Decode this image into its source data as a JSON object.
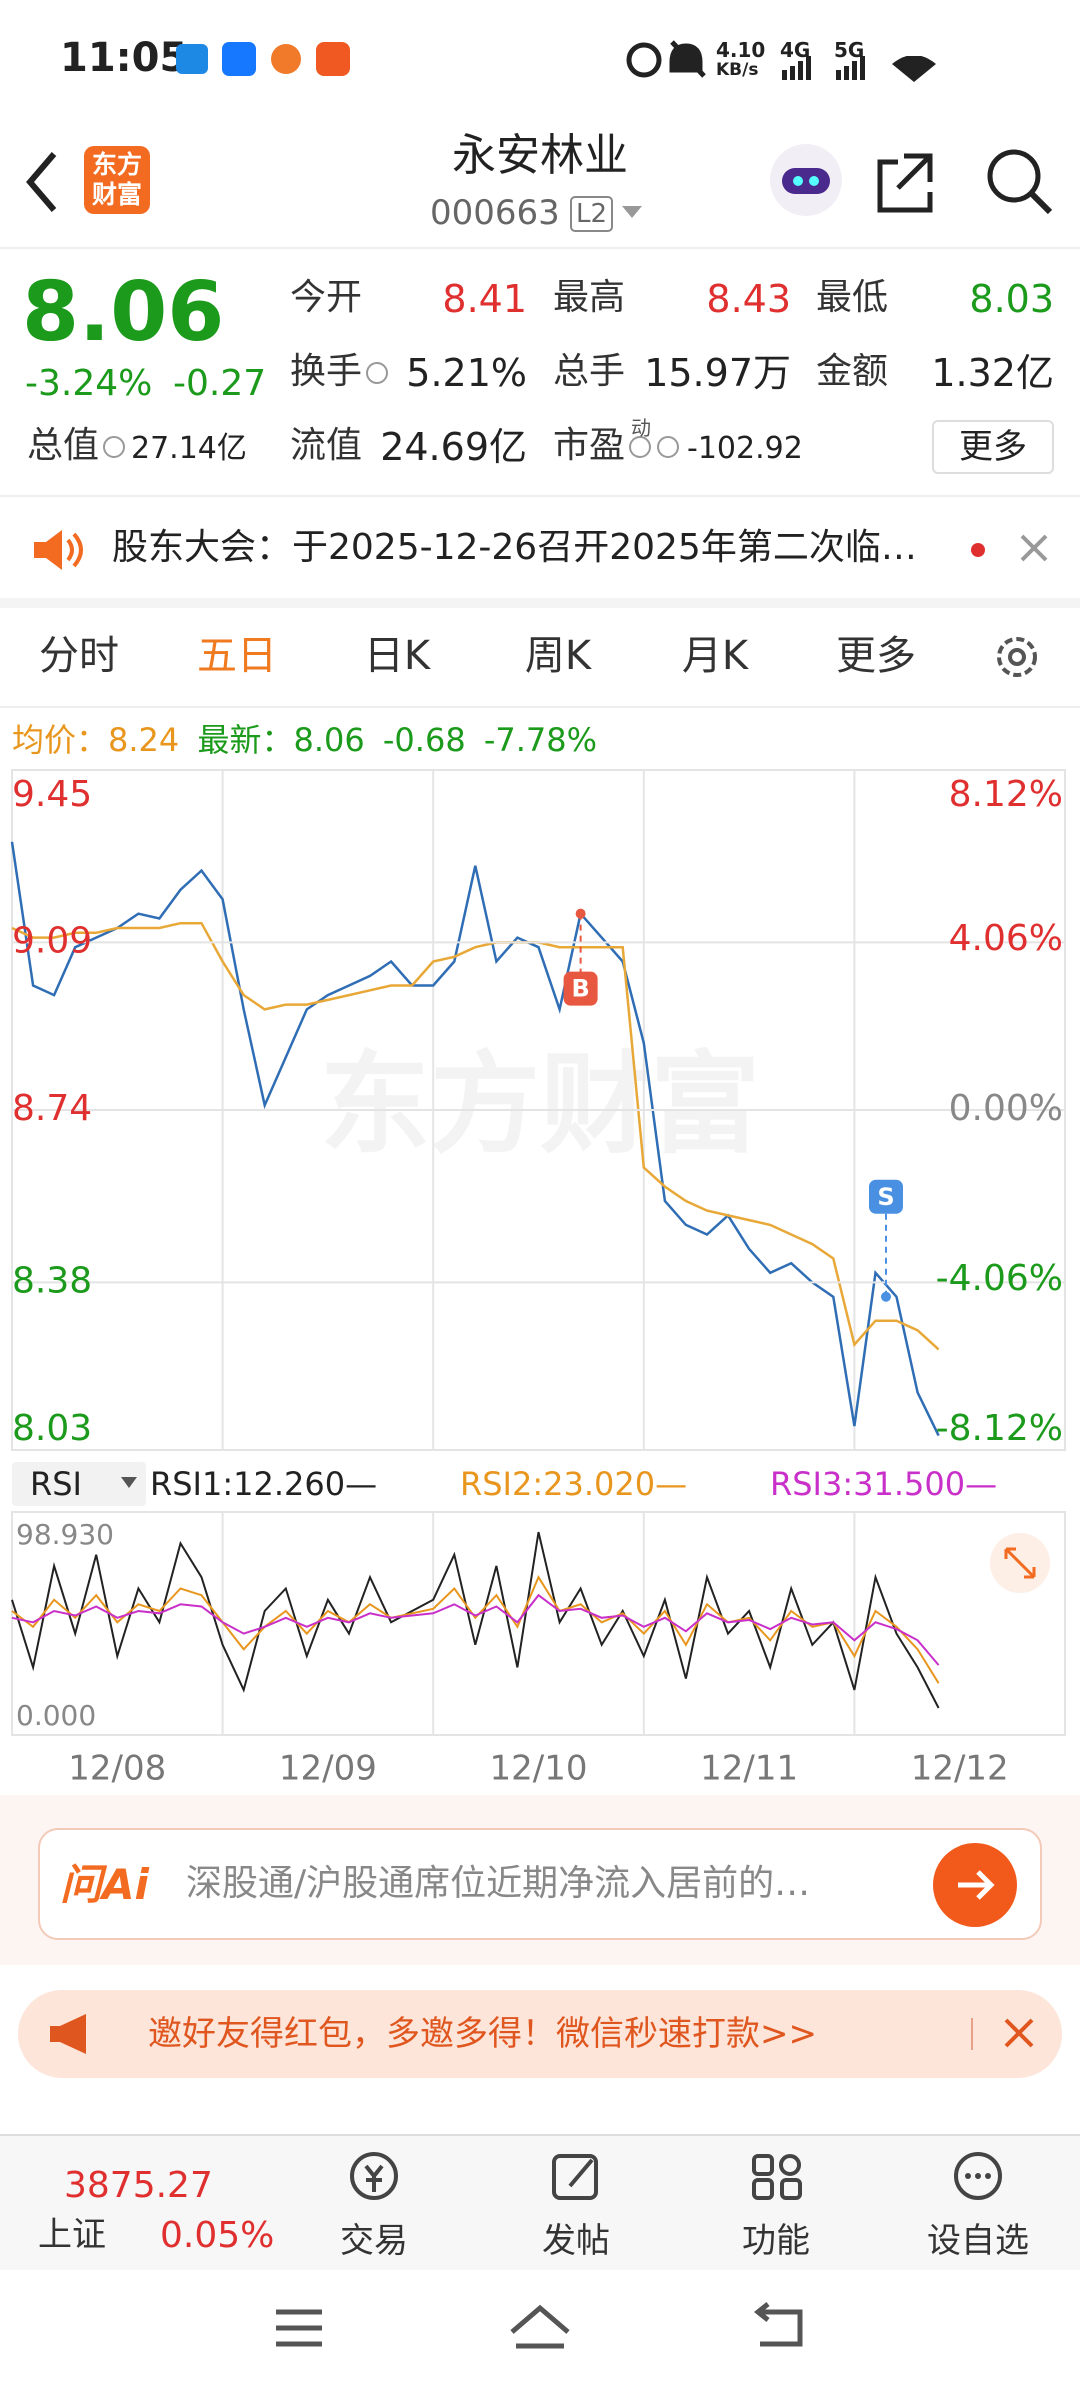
{
  "status": {
    "time": "11:05",
    "speed": "4.10",
    "speed_unit": "KB/s",
    "net1": "4G",
    "net2": "5G"
  },
  "header": {
    "logo_top": "东方",
    "logo_bottom": "财富",
    "title": "永安林业",
    "code": "000663",
    "level": "L2"
  },
  "quote": {
    "price": "8.06",
    "change_pct": "-3.24%",
    "change": "-0.27",
    "rows": [
      [
        {
          "label": "今开",
          "value": "8.41",
          "color": "#e02f2f"
        },
        {
          "label": "最高",
          "value": "8.43",
          "color": "#e02f2f"
        },
        {
          "label": "最低",
          "value": "8.03",
          "color": "#1b9a1b"
        }
      ],
      [
        {
          "label": "换手",
          "value": "5.21%"
        },
        {
          "label": "总手",
          "value": "15.97万"
        },
        {
          "label": "金额",
          "value": "1.32亿"
        }
      ],
      [
        {
          "label": "总值",
          "value": "27.14亿"
        },
        {
          "label": "流值",
          "value": "24.69亿"
        },
        {
          "label": "市盈",
          "sup": "动",
          "value": "-102.92"
        }
      ]
    ],
    "more": "更多"
  },
  "notice": "股东大会：于2025-12-26召开2025年第二次临…",
  "tabs": [
    "分时",
    "五日",
    "日K",
    "周K",
    "月K",
    "更多"
  ],
  "active_tab": 1,
  "info": {
    "avg_label": "均价：",
    "avg": "8.24",
    "last_label": "最新：",
    "last": "8.06",
    "change": "-0.68",
    "pct": "-7.78%"
  },
  "chart_data": [
    {
      "type": "line",
      "watermark": "东方财富",
      "xlim": [
        0,
        5
      ],
      "xticks": [
        {
          "value": 0.5,
          "label": "12/08"
        },
        {
          "value": 1.5,
          "label": "12/09"
        },
        {
          "value": 2.5,
          "label": "12/10"
        },
        {
          "value": 3.5,
          "label": "12/11"
        },
        {
          "value": 4.5,
          "label": "12/12"
        }
      ],
      "ylim": [
        8.03,
        9.45
      ],
      "yticks": [
        9.45,
        9.09,
        8.74,
        8.38,
        8.03
      ],
      "y2lim": [
        -8.12,
        8.12
      ],
      "y2ticks": [
        {
          "value": 8.12,
          "label": "8.12%"
        },
        {
          "value": 4.06,
          "label": "4.06%"
        },
        {
          "value": 0,
          "label": "0.00%"
        },
        {
          "value": -4.06,
          "label": "-4.06%"
        },
        {
          "value": -8.12,
          "label": "-8.12%"
        }
      ],
      "x": [
        0,
        0.1,
        0.2,
        0.3,
        0.4,
        0.5,
        0.6,
        0.7,
        0.8,
        0.9,
        1,
        1.1,
        1.2,
        1.3,
        1.4,
        1.5,
        1.6,
        1.7,
        1.8,
        1.9,
        2,
        2.1,
        2.2,
        2.3,
        2.4,
        2.5,
        2.6,
        2.7,
        2.8,
        2.9,
        3,
        3.1,
        3.2,
        3.3,
        3.4,
        3.5,
        3.6,
        3.7,
        3.8,
        3.9,
        4,
        4.1,
        4.2,
        4.3,
        4.4
      ],
      "series": [
        {
          "color": "#2f6db5",
          "values": [
            9.3,
            9.0,
            8.98,
            9.08,
            9.1,
            9.12,
            9.15,
            9.14,
            9.2,
            9.24,
            9.18,
            8.95,
            8.75,
            8.85,
            8.95,
            8.98,
            9.0,
            9.02,
            9.05,
            9.0,
            9.0,
            9.05,
            9.25,
            9.05,
            9.1,
            9.08,
            8.95,
            9.15,
            9.1,
            9.05,
            8.88,
            8.55,
            8.5,
            8.48,
            8.52,
            8.45,
            8.4,
            8.42,
            8.38,
            8.35,
            8.08,
            8.4,
            8.35,
            8.15,
            8.06
          ]
        },
        {
          "color": "#e8a838",
          "values": [
            9.12,
            9.1,
            9.1,
            9.11,
            9.11,
            9.12,
            9.12,
            9.12,
            9.13,
            9.13,
            9.05,
            8.98,
            8.95,
            8.96,
            8.96,
            8.97,
            8.98,
            8.99,
            9.0,
            9.0,
            9.05,
            9.06,
            9.08,
            9.09,
            9.09,
            9.09,
            9.08,
            9.08,
            9.08,
            9.08,
            8.62,
            8.58,
            8.55,
            8.53,
            8.52,
            8.51,
            8.5,
            8.48,
            8.46,
            8.43,
            8.25,
            8.3,
            8.3,
            8.28,
            8.24
          ]
        }
      ],
      "markers": [
        {
          "label": "B",
          "x": 2.7,
          "color": "#e8573f"
        },
        {
          "label": "S",
          "x": 4.15,
          "color": "#4a90e2"
        }
      ]
    },
    {
      "type": "line",
      "indicator": "RSI",
      "ylim": [
        0,
        98.93
      ],
      "yticks": [
        {
          "value": 98.93,
          "label": "98.930"
        },
        {
          "value": 0,
          "label": "0.000"
        }
      ],
      "x": [
        0,
        0.1,
        0.2,
        0.3,
        0.4,
        0.5,
        0.6,
        0.7,
        0.8,
        0.9,
        1,
        1.1,
        1.2,
        1.3,
        1.4,
        1.5,
        1.6,
        1.7,
        1.8,
        1.9,
        2,
        2.1,
        2.2,
        2.3,
        2.4,
        2.5,
        2.6,
        2.7,
        2.8,
        2.9,
        3,
        3.1,
        3.2,
        3.3,
        3.4,
        3.5,
        3.6,
        3.7,
        3.8,
        3.9,
        4,
        4.1,
        4.2,
        4.3,
        4.4
      ],
      "series": [
        {
          "name": "RSI1:12.260—",
          "color": "#222222",
          "values": [
            60,
            30,
            75,
            45,
            80,
            35,
            65,
            50,
            85,
            70,
            40,
            20,
            55,
            65,
            35,
            60,
            45,
            70,
            50,
            55,
            60,
            80,
            40,
            75,
            30,
            90,
            50,
            65,
            40,
            55,
            35,
            60,
            25,
            70,
            45,
            55,
            30,
            65,
            40,
            50,
            20,
            70,
            45,
            30,
            12
          ]
        },
        {
          "name": "RSI2:23.020—",
          "color": "#e8961e",
          "values": [
            55,
            48,
            60,
            52,
            62,
            50,
            58,
            55,
            65,
            62,
            50,
            38,
            48,
            55,
            45,
            55,
            50,
            58,
            52,
            54,
            56,
            65,
            52,
            62,
            48,
            70,
            55,
            58,
            50,
            54,
            45,
            55,
            40,
            58,
            50,
            52,
            42,
            55,
            48,
            50,
            35,
            55,
            48,
            38,
            23
          ]
        },
        {
          "name": "RSI3:31.500—",
          "color": "#c930c9",
          "values": [
            52,
            50,
            55,
            53,
            57,
            52,
            55,
            54,
            58,
            57,
            50,
            45,
            48,
            52,
            48,
            52,
            50,
            54,
            52,
            53,
            54,
            58,
            53,
            57,
            50,
            62,
            55,
            56,
            52,
            53,
            48,
            52,
            46,
            54,
            50,
            51,
            47,
            52,
            49,
            50,
            42,
            50,
            47,
            42,
            31
          ]
        }
      ]
    }
  ],
  "ai": {
    "logo": "问Ai",
    "placeholder": "深股通/沪股通席位近期净流入居前的…"
  },
  "promo": "邀好友得红包，多邀多得！微信秒速打款>>",
  "bottom": {
    "index_value": "3875.27",
    "index_name": "上证",
    "index_change": "0.05%",
    "nav": [
      "交易",
      "发帖",
      "功能",
      "设自选"
    ]
  }
}
